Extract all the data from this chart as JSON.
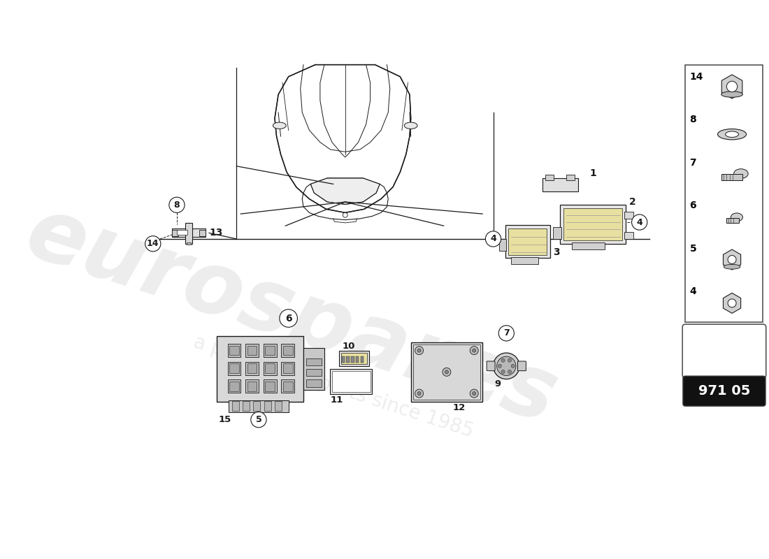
{
  "page_code": "971 05",
  "bg_color": "#ffffff",
  "watermark1": "eurospares",
  "watermark2": "a passion for parts since 1985",
  "line_color": "#1a1a1a",
  "sidebar_items": [
    14,
    8,
    7,
    6,
    5,
    4
  ],
  "page_num_bg": "#111111",
  "page_num_fg": "#ffffff",
  "car_color": "#dddddd",
  "part_color": "#cccccc",
  "part_yellow": "#e8e0a0"
}
